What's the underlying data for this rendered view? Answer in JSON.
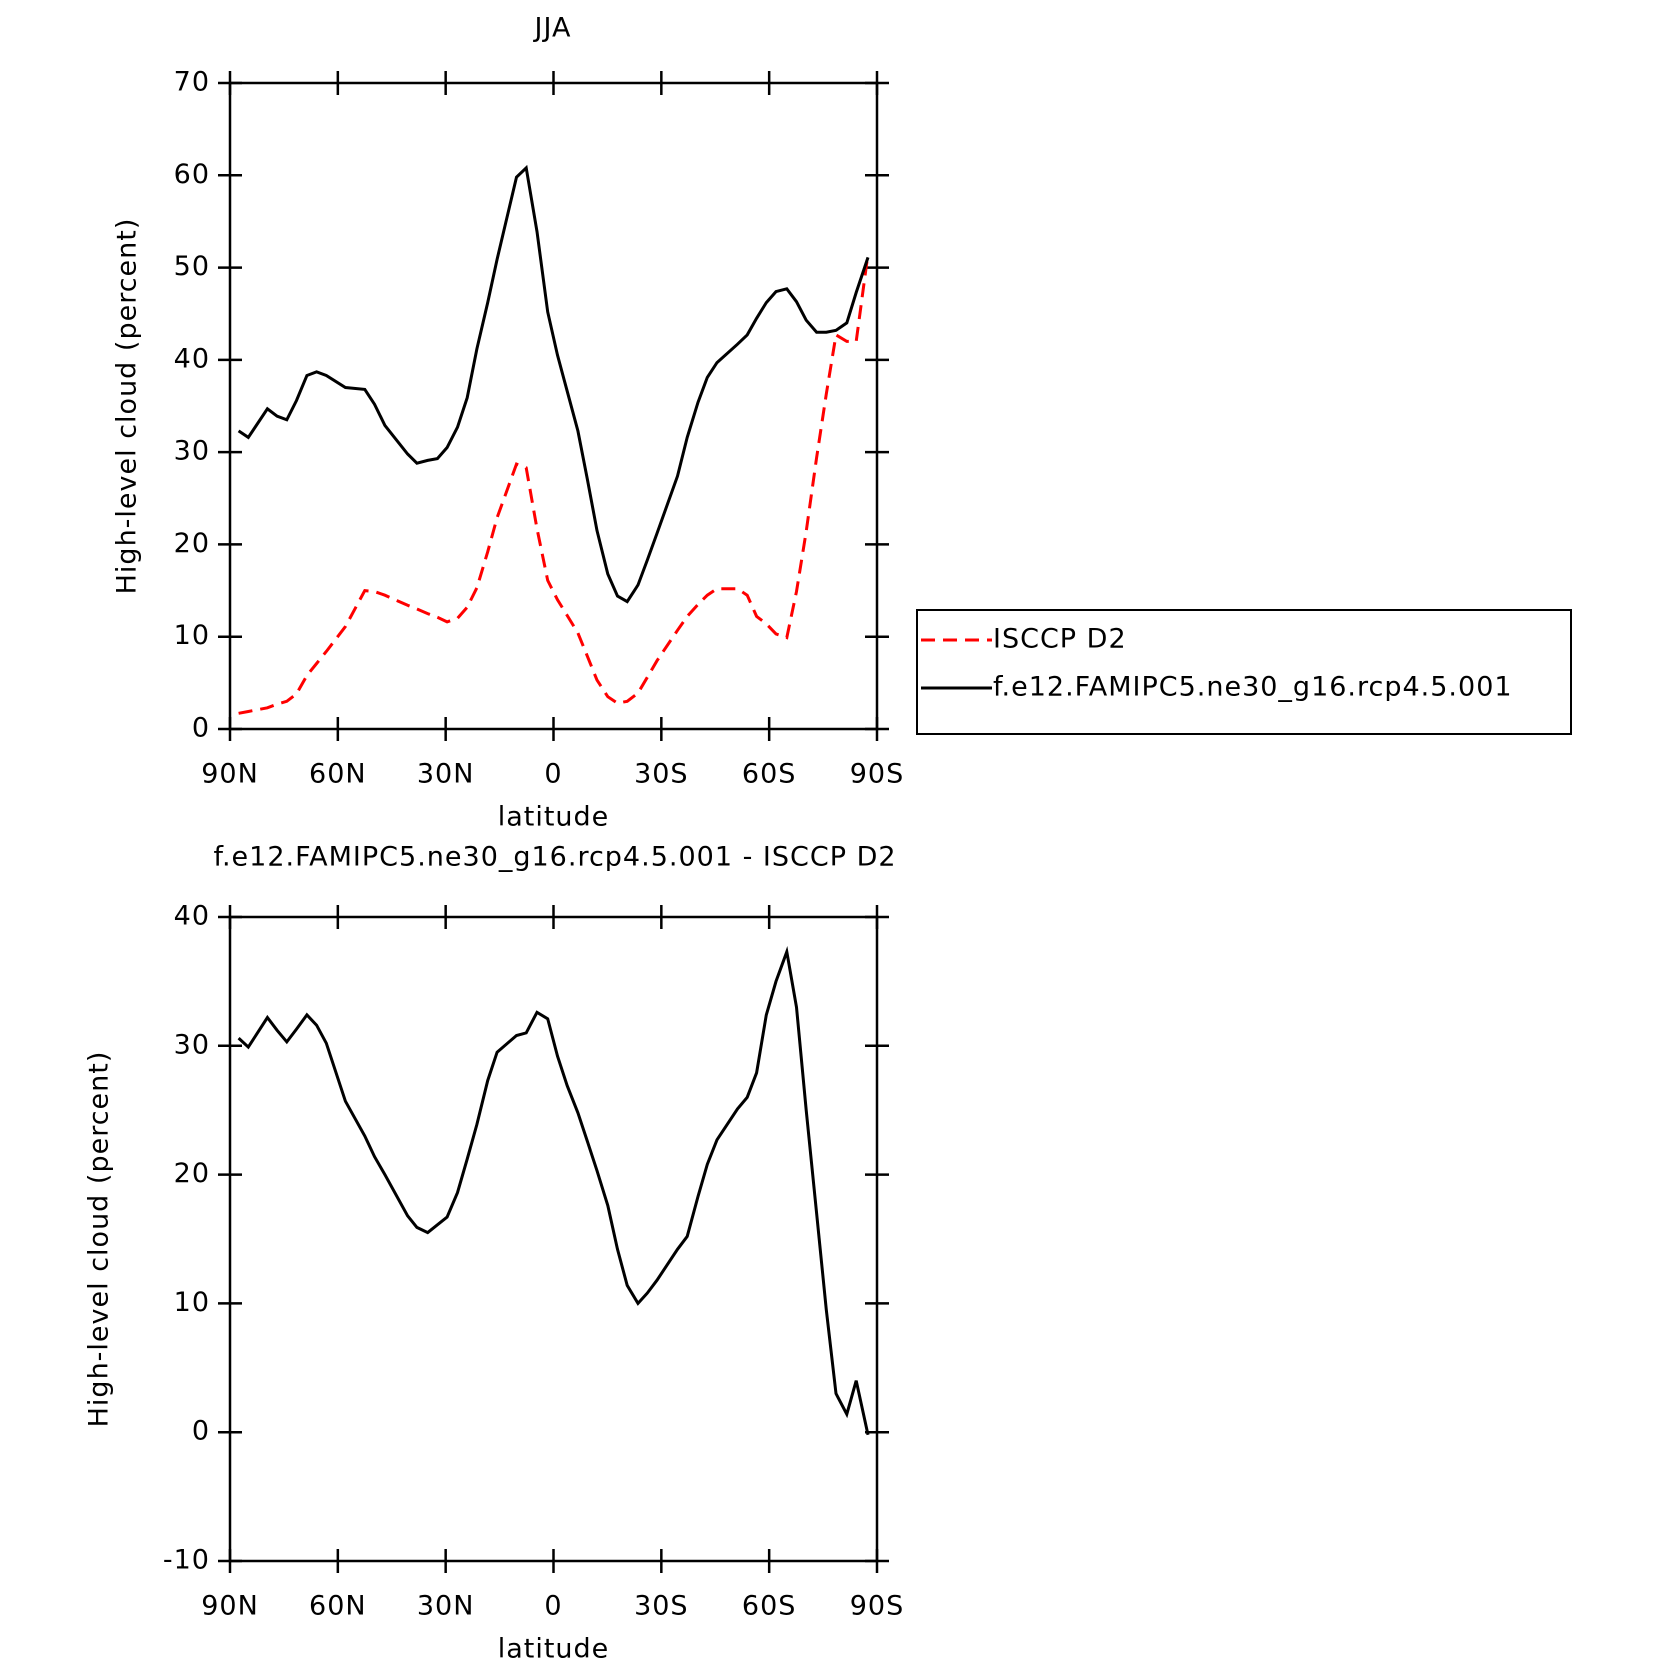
{
  "chart_data": [
    {
      "type": "line",
      "title": "JJA",
      "xlabel": "latitude",
      "ylabel": "High-level cloud (percent)",
      "x": [
        87.6,
        84.9,
        79.6,
        76.9,
        74.2,
        71.5,
        68.6,
        65.9,
        63.2,
        57.9,
        52.5,
        49.8,
        46.9,
        40.6,
        38.0,
        35.0,
        32.3,
        29.6,
        26.7,
        24.0,
        21.3,
        18.3,
        15.7,
        10.3,
        7.6,
        4.6,
        1.6,
        -1.1,
        -3.8,
        -6.8,
        -9.4,
        -12.1,
        -15.1,
        -17.8,
        -20.5,
        -23.5,
        -26.1,
        -28.8,
        -34.5,
        -37.2,
        -40.2,
        -42.8,
        -45.5,
        -51.2,
        -53.9,
        -56.5,
        -59.2,
        -61.9,
        -64.9,
        -67.6,
        -70.3,
        -73.2,
        -75.9,
        -78.6,
        -81.6,
        -84.2,
        -87.5
      ],
      "series": [
        {
          "name": "ISCCP D2",
          "color": "#ff0000",
          "line_style": "dashed",
          "values": [
            1.7,
            1.9,
            2.3,
            2.7,
            3.0,
            3.8,
            5.8,
            7.1,
            8.4,
            11.1,
            15.0,
            14.9,
            14.5,
            13.4,
            13.0,
            12.5,
            12.1,
            11.6,
            12.0,
            13.2,
            15.3,
            19.2,
            22.9,
            28.7,
            28.3,
            21.7,
            16.1,
            14.0,
            12.3,
            10.4,
            7.9,
            5.3,
            3.5,
            2.8,
            3.0,
            3.9,
            5.6,
            7.4,
            10.7,
            12.2,
            13.5,
            14.5,
            15.2,
            15.2,
            14.5,
            12.2,
            11.4,
            10.3,
            9.9,
            14.9,
            21.4,
            29.4,
            36.3,
            42.7,
            42.0,
            42.0,
            51.5
          ]
        },
        {
          "name": "f.e12.FAMIPC5.ne30_g16.rcp4.5.001",
          "color": "#000000",
          "line_style": "solid",
          "values": [
            32.3,
            31.6,
            34.7,
            33.9,
            33.5,
            35.6,
            38.3,
            38.7,
            38.3,
            37.0,
            36.8,
            35.2,
            32.9,
            29.8,
            28.8,
            29.1,
            29.3,
            30.5,
            32.7,
            35.9,
            41.2,
            46.2,
            50.9,
            59.8,
            60.8,
            53.9,
            45.2,
            40.5,
            36.6,
            32.3,
            27.1,
            21.5,
            16.8,
            14.4,
            13.8,
            15.6,
            18.3,
            21.2,
            27.4,
            31.6,
            35.4,
            38.1,
            39.7,
            41.7,
            42.7,
            44.5,
            46.2,
            47.4,
            47.7,
            46.3,
            44.3,
            43.0,
            43.0,
            43.2,
            44.0,
            47.3,
            51.1
          ]
        }
      ],
      "xlim": [
        90,
        -90
      ],
      "xticks": [
        {
          "value": 90,
          "label": "90N"
        },
        {
          "value": 60,
          "label": "60N"
        },
        {
          "value": 30,
          "label": "30N"
        },
        0,
        {
          "value": -30,
          "label": "30S"
        },
        {
          "value": -60,
          "label": "60S"
        },
        {
          "value": -90,
          "label": "90S"
        }
      ],
      "ylim": [
        0,
        70
      ],
      "yticks": [
        0,
        10,
        20,
        30,
        40,
        50,
        60,
        70
      ],
      "legend": "right"
    },
    {
      "type": "line",
      "title": "f.e12.FAMIPC5.ne30_g16.rcp4.5.001 - ISCCP D2",
      "xlabel": "latitude",
      "ylabel": "High-level cloud (percent)",
      "x": [
        87.6,
        84.9,
        79.6,
        76.9,
        74.2,
        71.5,
        68.6,
        65.9,
        63.2,
        57.9,
        52.5,
        49.8,
        46.9,
        40.6,
        38.0,
        35.0,
        32.3,
        29.6,
        26.7,
        24.0,
        21.3,
        18.3,
        15.7,
        10.3,
        7.6,
        4.6,
        1.6,
        -1.1,
        -3.8,
        -6.8,
        -9.4,
        -12.1,
        -15.1,
        -17.8,
        -20.5,
        -23.5,
        -26.1,
        -28.8,
        -34.5,
        -37.2,
        -40.2,
        -42.8,
        -45.5,
        -51.2,
        -53.9,
        -56.5,
        -59.2,
        -61.9,
        -64.9,
        -67.6,
        -70.3,
        -73.2,
        -75.9,
        -78.6,
        -81.6,
        -84.2,
        -87.5
      ],
      "values": [
        30.6,
        29.9,
        32.2,
        31.2,
        30.3,
        31.3,
        32.4,
        31.6,
        30.2,
        25.7,
        23.0,
        21.4,
        20.0,
        16.8,
        15.9,
        15.5,
        16.1,
        16.7,
        18.6,
        21.2,
        23.9,
        27.3,
        29.5,
        30.8,
        31.0,
        32.6,
        32.1,
        29.2,
        26.9,
        24.8,
        22.6,
        20.3,
        17.6,
        14.2,
        11.4,
        10.0,
        10.8,
        11.8,
        14.2,
        15.2,
        18.3,
        20.8,
        22.7,
        25.1,
        26.0,
        27.9,
        32.4,
        35.0,
        37.3,
        33.0,
        25.0,
        17.0,
        9.5,
        3.0,
        1.4,
        4.0,
        -0.2
      ],
      "color": "#000000",
      "line_style": "solid",
      "xlim": [
        90,
        -90
      ],
      "xticks": [
        {
          "value": 90,
          "label": "90N"
        },
        {
          "value": 60,
          "label": "60N"
        },
        {
          "value": 30,
          "label": "30N"
        },
        0,
        {
          "value": -30,
          "label": "30S"
        },
        {
          "value": -60,
          "label": "60S"
        },
        {
          "value": -90,
          "label": "90S"
        }
      ],
      "ylim": [
        -10,
        40
      ],
      "yticks": [
        -10,
        0,
        10,
        20,
        30,
        40
      ]
    }
  ]
}
